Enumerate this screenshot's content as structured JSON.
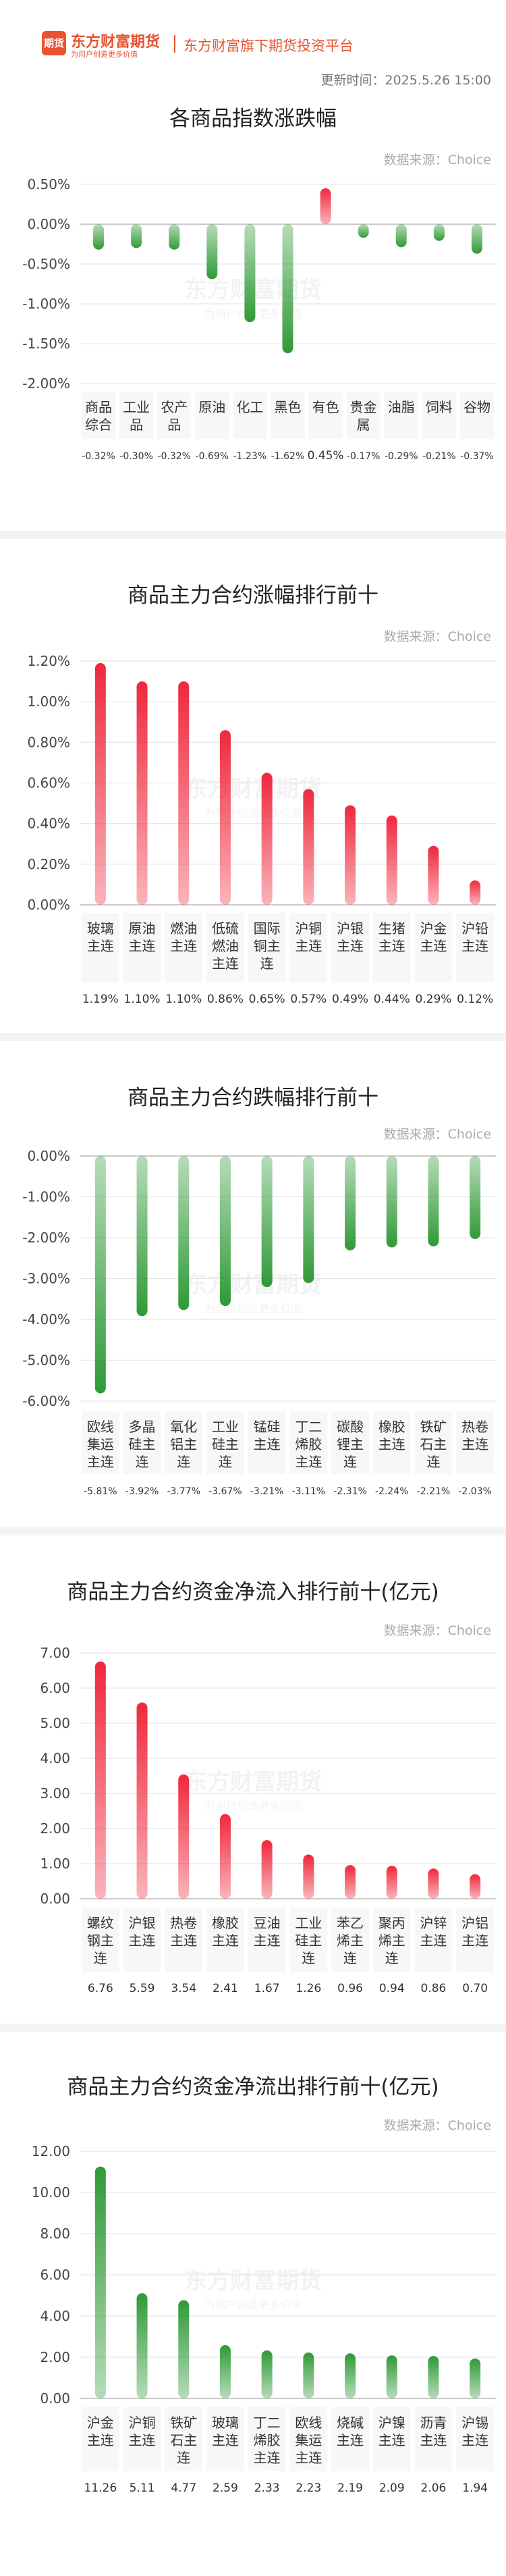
{
  "header": {
    "logo_mark": "期货",
    "logo_main": "东方财富期货",
    "logo_sub": "为用户创造更多价值",
    "platform": "东方财富旗下期货投资平台",
    "update_time": "更新时间：2025.5.26 15:00"
  },
  "watermark": {
    "main": "东方财富期货",
    "sub": "为用户创造更多价值"
  },
  "sections": [
    {
      "title": "各商品指数涨跌幅",
      "source": "数据来源：Choice",
      "chart_data": {
        "type": "bar",
        "categories": [
          "商品综合",
          "工业品",
          "农产品",
          "原油",
          "化工",
          "黑色",
          "有色",
          "贵金属",
          "油脂",
          "饲料",
          "谷物"
        ],
        "values": [
          -0.32,
          -0.3,
          -0.32,
          -0.69,
          -1.23,
          -1.62,
          0.45,
          -0.17,
          -0.29,
          -0.21,
          -0.37
        ],
        "value_labels": [
          "-0.32%",
          "-0.30%",
          "-0.32%",
          "-0.69%",
          "-1.23%",
          "-1.62%",
          "0.45%",
          "-0.17%",
          "-0.29%",
          "-0.21%",
          "-0.37%"
        ],
        "ylim": [
          -2.0,
          0.5
        ],
        "yticks": [
          "0.50%",
          "0.00%",
          "-0.50%",
          "-1.00%",
          "-1.50%",
          "-2.00%"
        ],
        "ytick_values": [
          0.5,
          0,
          -0.5,
          -1.0,
          -1.5,
          -2.0
        ],
        "pos_color": "#f0283c",
        "neg_color": "#2f9a36"
      }
    },
    {
      "title": "商品主力合约涨幅排行前十",
      "source": "数据来源：Choice",
      "chart_data": {
        "type": "bar",
        "categories": [
          "玻璃主连",
          "原油主连",
          "燃油主连",
          "低硫燃油主连",
          "国际铜主连",
          "沪铜主连",
          "沪银主连",
          "生猪主连",
          "沪金主连",
          "沪铅主连"
        ],
        "values": [
          1.19,
          1.1,
          1.1,
          0.86,
          0.65,
          0.57,
          0.49,
          0.44,
          0.29,
          0.12
        ],
        "value_labels": [
          "1.19%",
          "1.10%",
          "1.10%",
          "0.86%",
          "0.65%",
          "0.57%",
          "0.49%",
          "0.44%",
          "0.29%",
          "0.12%"
        ],
        "ylim": [
          0,
          1.2
        ],
        "yticks": [
          "1.20%",
          "1.00%",
          "0.80%",
          "0.60%",
          "0.40%",
          "0.20%",
          "0.00%"
        ],
        "ytick_values": [
          1.2,
          1.0,
          0.8,
          0.6,
          0.4,
          0.2,
          0
        ],
        "pos_color": "#f0283c",
        "neg_color": "#2f9a36"
      }
    },
    {
      "title": "商品主力合约跌幅排行前十",
      "source": "数据来源：Choice",
      "chart_data": {
        "type": "bar",
        "categories": [
          "欧线集运主连",
          "多晶硅主连",
          "氧化铝主连",
          "工业硅主连",
          "锰硅主连",
          "丁二烯胶主连",
          "碳酸锂主连",
          "橡胶主连",
          "铁矿石主连",
          "热卷主连"
        ],
        "values": [
          -5.81,
          -3.92,
          -3.77,
          -3.67,
          -3.21,
          -3.11,
          -2.31,
          -2.24,
          -2.21,
          -2.03
        ],
        "value_labels": [
          "-5.81%",
          "-3.92%",
          "-3.77%",
          "-3.67%",
          "-3.21%",
          "-3.11%",
          "-2.31%",
          "-2.24%",
          "-2.21%",
          "-2.03%"
        ],
        "ylim": [
          -6.0,
          0
        ],
        "yticks": [
          "0.00%",
          "-1.00%",
          "-2.00%",
          "-3.00%",
          "-4.00%",
          "-5.00%",
          "-6.00%"
        ],
        "ytick_values": [
          0,
          -1,
          -2,
          -3,
          -4,
          -5,
          -6
        ],
        "pos_color": "#f0283c",
        "neg_color": "#2f9a36"
      }
    },
    {
      "title": "商品主力合约资金净流入排行前十(亿元)",
      "source": "数据来源：Choice",
      "chart_data": {
        "type": "bar",
        "categories": [
          "螺纹钢主连",
          "沪银主连",
          "热卷主连",
          "橡胶主连",
          "豆油主连",
          "工业硅主连",
          "苯乙烯主连",
          "聚丙烯主连",
          "沪锌主连",
          "沪铝主连"
        ],
        "values": [
          6.76,
          5.59,
          3.54,
          2.41,
          1.67,
          1.26,
          0.96,
          0.94,
          0.86,
          0.7
        ],
        "value_labels": [
          "6.76",
          "5.59",
          "3.54",
          "2.41",
          "1.67",
          "1.26",
          "0.96",
          "0.94",
          "0.86",
          "0.70"
        ],
        "ylim": [
          0,
          7.0
        ],
        "yticks": [
          "7.00",
          "6.00",
          "5.00",
          "4.00",
          "3.00",
          "2.00",
          "1.00",
          "0.00"
        ],
        "ytick_values": [
          7,
          6,
          5,
          4,
          3,
          2,
          1,
          0
        ],
        "pos_color": "#f0283c",
        "neg_color": "#2f9a36"
      }
    },
    {
      "title": "商品主力合约资金净流出排行前十(亿元)",
      "source": "数据来源：Choice",
      "chart_data": {
        "type": "bar",
        "categories": [
          "沪金主连",
          "沪铜主连",
          "铁矿石主连",
          "玻璃主连",
          "丁二烯胶主连",
          "欧线集运主连",
          "烧碱主连",
          "沪镍主连",
          "沥青主连",
          "沪锡主连"
        ],
        "values": [
          11.26,
          5.11,
          4.77,
          2.59,
          2.33,
          2.23,
          2.19,
          2.09,
          2.06,
          1.94
        ],
        "value_labels": [
          "11.26",
          "5.11",
          "4.77",
          "2.59",
          "2.33",
          "2.23",
          "2.19",
          "2.09",
          "2.06",
          "1.94"
        ],
        "ylim": [
          0,
          12.0
        ],
        "yticks": [
          "12.00",
          "10.00",
          "8.00",
          "6.00",
          "4.00",
          "2.00",
          "0.00"
        ],
        "ytick_values": [
          12,
          10,
          8,
          6,
          4,
          2,
          0
        ],
        "pos_color": "#2f9a36",
        "neg_color": "#2f9a36"
      }
    }
  ]
}
